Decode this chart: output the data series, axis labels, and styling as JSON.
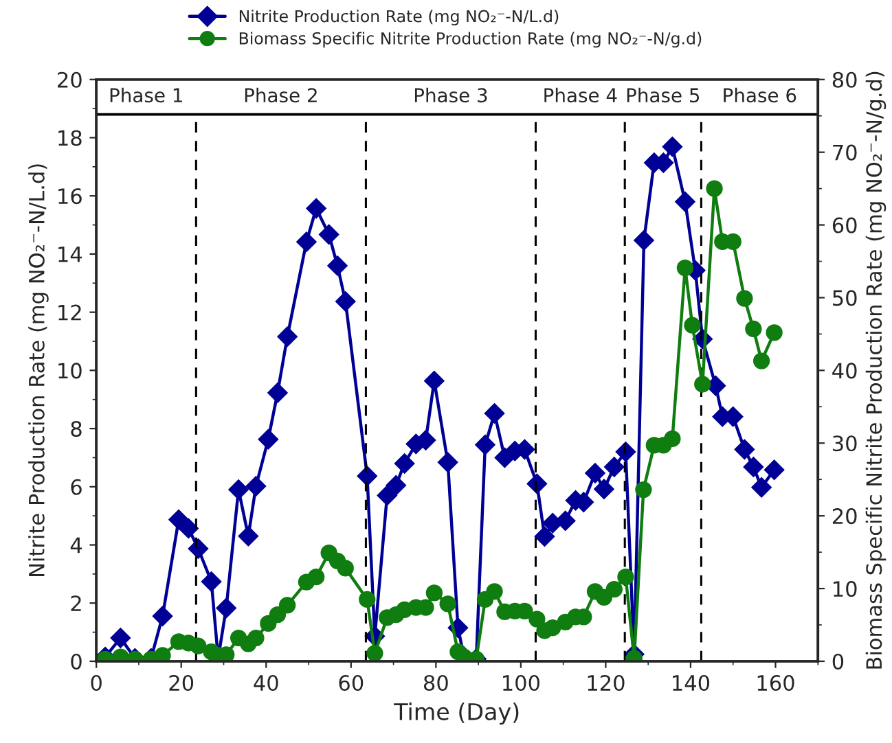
{
  "chart_data": {
    "type": "line",
    "xlabel": "Time (Day)",
    "ylabel": "Nitrite Production Rate (mg NO₂⁻-N/L.d)",
    "y2label": "Biomass Specific Nitrite Production Rate (mg NO₂⁻-N/g.d)",
    "series": [
      {
        "name": "Nitrite Production Rate (mg NO₂⁻-N/L.d)",
        "color": "#000096",
        "marker": "diamond",
        "axis": "y",
        "x": [
          2.1,
          5.7,
          9.1,
          12.9,
          15.6,
          19.4,
          21.7,
          24.0,
          27.1,
          28.7,
          30.6,
          33.5,
          35.8,
          37.6,
          40.5,
          42.7,
          45.0,
          49.5,
          51.8,
          54.8,
          56.8,
          58.7,
          63.8,
          65.6,
          68.5,
          70.6,
          72.6,
          75.3,
          77.6,
          79.6,
          82.8,
          85.2,
          86.6,
          89.5,
          91.6,
          93.8,
          96.2,
          98.6,
          100.9,
          103.8,
          105.6,
          107.5,
          110.5,
          112.9,
          114.8,
          117.5,
          119.6,
          122.0,
          124.7,
          126.7,
          129.0,
          131.4,
          133.6,
          135.7,
          138.7,
          141.1,
          142.8,
          145.9,
          147.5,
          150.0,
          152.7,
          154.8,
          156.7,
          159.7
        ],
        "values": [
          0.15,
          0.8,
          0.1,
          0.1,
          1.55,
          4.87,
          4.57,
          3.87,
          2.74,
          0.1,
          1.83,
          5.9,
          4.3,
          6.02,
          7.63,
          9.23,
          11.16,
          14.42,
          15.57,
          14.67,
          13.6,
          12.37,
          6.37,
          0.86,
          5.7,
          6.05,
          6.8,
          7.47,
          7.6,
          9.64,
          6.84,
          1.15,
          0.16,
          0.08,
          7.44,
          8.52,
          7.0,
          7.23,
          7.28,
          6.1,
          4.29,
          4.75,
          4.83,
          5.53,
          5.47,
          6.47,
          5.92,
          6.68,
          7.2,
          0.24,
          14.47,
          17.14,
          17.14,
          17.69,
          15.8,
          13.44,
          11.08,
          9.47,
          8.41,
          8.41,
          7.28,
          6.68,
          5.98,
          6.58
        ]
      },
      {
        "name": "Biomass Specific Nitrite Production Rate (mg NO₂⁻-N/g.d)",
        "color": "#0f7d0f",
        "marker": "circle",
        "axis": "y2",
        "x": [
          2.1,
          5.7,
          9.1,
          12.9,
          15.6,
          19.4,
          21.7,
          24.0,
          27.1,
          28.7,
          30.6,
          33.5,
          35.8,
          37.6,
          40.5,
          42.7,
          45.0,
          49.5,
          51.8,
          54.8,
          56.8,
          58.7,
          63.8,
          65.6,
          68.5,
          70.6,
          72.6,
          75.3,
          77.6,
          79.6,
          82.8,
          85.2,
          86.6,
          89.5,
          91.6,
          93.8,
          96.2,
          98.6,
          100.9,
          103.8,
          105.6,
          107.5,
          110.5,
          112.9,
          114.8,
          117.5,
          119.6,
          122.0,
          124.7,
          126.7,
          128.9,
          131.4,
          133.6,
          135.7,
          138.7,
          140.4,
          142.8,
          145.6,
          147.5,
          150.0,
          152.7,
          154.8,
          156.7,
          159.7
        ],
        "values": [
          0.3,
          0.6,
          0.3,
          0.3,
          0.8,
          2.7,
          2.5,
          2.1,
          1.3,
          0.8,
          0.9,
          3.2,
          2.4,
          3.2,
          5.2,
          6.4,
          7.7,
          10.9,
          11.6,
          14.9,
          13.8,
          12.8,
          8.5,
          1.1,
          6.0,
          6.4,
          7.1,
          7.4,
          7.4,
          9.4,
          7.9,
          1.3,
          0.6,
          0.3,
          8.5,
          9.6,
          6.8,
          6.9,
          6.9,
          5.8,
          4.2,
          4.6,
          5.4,
          6.1,
          6.1,
          9.6,
          8.8,
          9.9,
          11.6,
          0.4,
          23.6,
          29.7,
          29.7,
          30.6,
          54.1,
          46.2,
          38.1,
          65.0,
          57.7,
          57.7,
          49.9,
          45.7,
          41.3,
          45.2
        ]
      }
    ],
    "xlim": [
      0,
      170
    ],
    "xticks": [
      0,
      20,
      40,
      60,
      80,
      100,
      120,
      140,
      160
    ],
    "ylim": [
      0,
      20
    ],
    "yticks": [
      0,
      2,
      4,
      6,
      8,
      10,
      12,
      14,
      16,
      18,
      20
    ],
    "y2lim": [
      0,
      80
    ],
    "y2ticks": [
      0,
      10,
      20,
      30,
      40,
      50,
      60,
      70,
      80
    ],
    "ref_lines": [
      {
        "axis": "x",
        "value": 23.5,
        "line_style": "dashed",
        "color": "#000000"
      },
      {
        "axis": "x",
        "value": 63.5,
        "line_style": "dashed",
        "color": "#000000"
      },
      {
        "axis": "x",
        "value": 103.5,
        "line_style": "dashed",
        "color": "#000000"
      },
      {
        "axis": "x",
        "value": 124.5,
        "line_style": "dashed",
        "color": "#000000"
      },
      {
        "axis": "x",
        "value": 142.5,
        "line_style": "dashed",
        "color": "#000000"
      },
      {
        "axis": "y",
        "value": 18.8,
        "line_style": "solid",
        "color": "#000000"
      }
    ],
    "annotations": [
      "Phase 1",
      "Phase 2",
      "Phase 3",
      "Phase 4",
      "Phase 5",
      "Phase 6"
    ],
    "grid": false,
    "legend": "top",
    "line_style": "solid"
  }
}
